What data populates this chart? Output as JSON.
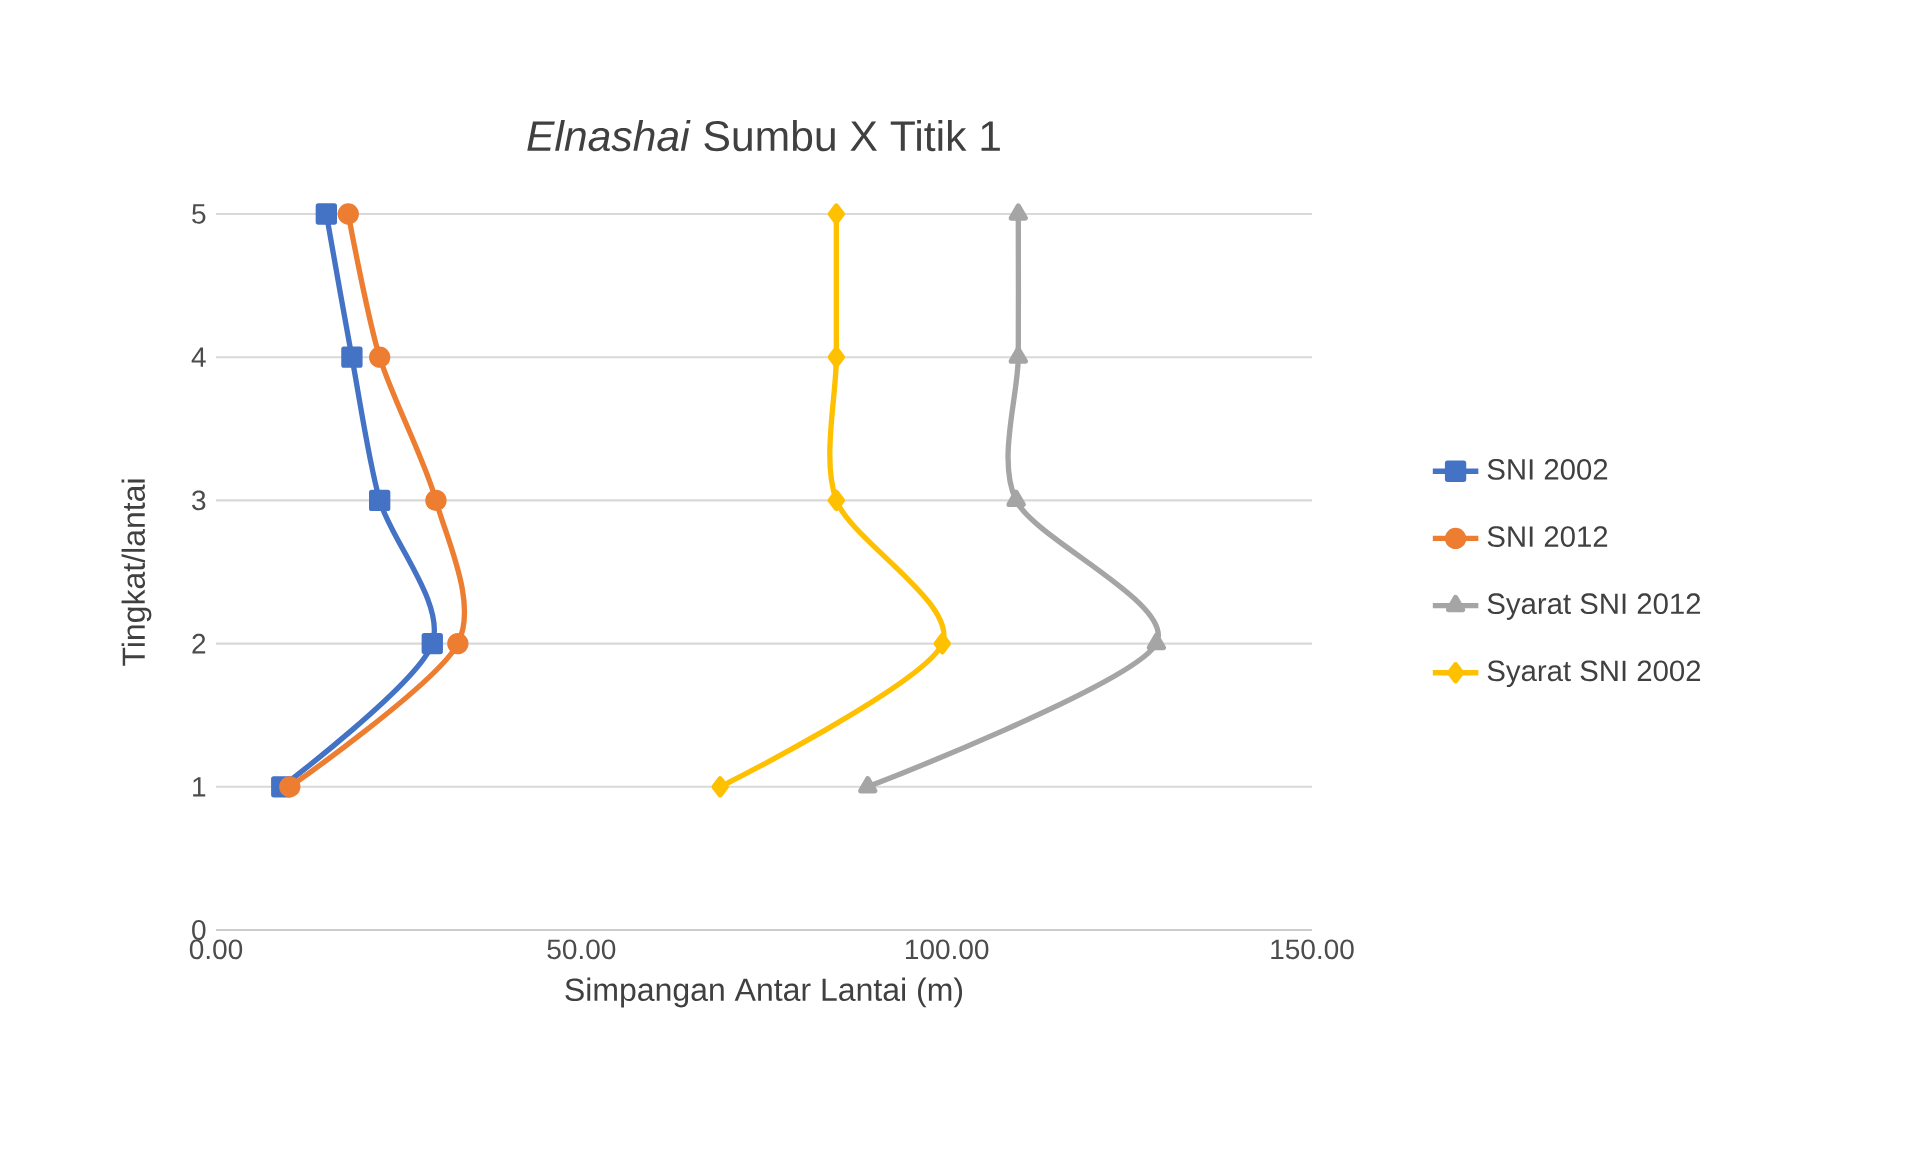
{
  "chart_data": {
    "type": "line",
    "title": "*Elnashai* Sumbu X Titik 1",
    "xlabel": "Simpangan Antar Lantai (m)",
    "ylabel": "Tingkat/lantai",
    "xlim": [
      0,
      150
    ],
    "xticks": [
      {
        "value": 0,
        "label": "0.00"
      },
      {
        "value": 50,
        "label": "50.00"
      },
      {
        "value": 100,
        "label": "100.00"
      },
      {
        "value": 150,
        "label": "150.00"
      }
    ],
    "ylim": [
      0,
      5
    ],
    "yticks": [
      0,
      1,
      2,
      3,
      4,
      5
    ],
    "grid": "y",
    "legend": "right",
    "line_style": "solid",
    "series": [
      {
        "name": "SNI 2002",
        "color": "#4472c4",
        "marker": "square",
        "x": [
          9.0,
          29.6,
          22.4,
          18.6,
          15.1
        ],
        "values": [
          1,
          2,
          3,
          4,
          5
        ]
      },
      {
        "name": "SNI 2012",
        "color": "#ed7d31",
        "marker": "circle",
        "x": [
          10.1,
          33.1,
          30.1,
          22.4,
          18.1
        ],
        "values": [
          1,
          2,
          3,
          4,
          5
        ]
      },
      {
        "name": "Syarat SNI 2012",
        "color": "#a5a5a5",
        "marker": "triangle",
        "x": [
          89.2,
          128.7,
          109.5,
          109.8,
          109.8
        ],
        "values": [
          1,
          2,
          3,
          4,
          5
        ]
      },
      {
        "name": "Syarat SNI 2002",
        "color": "#ffc000",
        "marker": "diamond",
        "x": [
          69.0,
          99.4,
          84.9,
          84.9,
          84.9
        ],
        "values": [
          1,
          2,
          3,
          4,
          5
        ]
      }
    ]
  }
}
